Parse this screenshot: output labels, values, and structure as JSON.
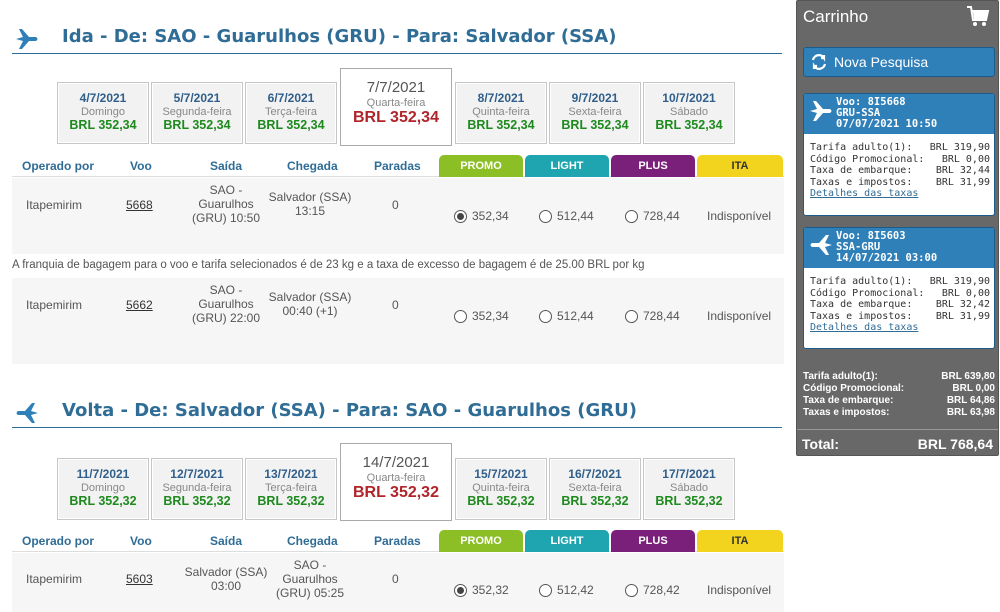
{
  "outbound": {
    "title": "Ida - De: SAO - Guarulhos (GRU) - Para: Salvador (SSA)",
    "dates": [
      {
        "date": "4/7/2021",
        "weekday": "Domingo",
        "price": "BRL 352,34"
      },
      {
        "date": "5/7/2021",
        "weekday": "Segunda-feira",
        "price": "BRL 352,34"
      },
      {
        "date": "6/7/2021",
        "weekday": "Terça-feira",
        "price": "BRL 352,34"
      },
      {
        "date": "7/7/2021",
        "weekday": "Quarta-feira",
        "price": "BRL 352,34"
      },
      {
        "date": "8/7/2021",
        "weekday": "Quinta-feira",
        "price": "BRL 352,34"
      },
      {
        "date": "9/7/2021",
        "weekday": "Sexta-feira",
        "price": "BRL 352,34"
      },
      {
        "date": "10/7/2021",
        "weekday": "Sábado",
        "price": "BRL 352,34"
      }
    ],
    "flights": [
      {
        "operator": "Itapemirim",
        "number": "5668",
        "dep1": "SAO -",
        "dep2": "Guarulhos",
        "dep3": "(GRU) 10:50",
        "arr1": "Salvador (SSA)",
        "arr2": "13:15",
        "arr3": "",
        "stops": "0",
        "promo": "352,34",
        "light": "512,44",
        "plus": "728,44",
        "ita": "Indisponível"
      },
      {
        "operator": "Itapemirim",
        "number": "5662",
        "dep1": "SAO -",
        "dep2": "Guarulhos",
        "dep3": "(GRU) 22:00",
        "arr1": "Salvador (SSA)",
        "arr2": "00:40 (+1)",
        "arr3": "",
        "stops": "0",
        "promo": "352,34",
        "light": "512,44",
        "plus": "728,44",
        "ita": "Indisponível"
      }
    ],
    "baggage_note": "A franquia de bagagem para o voo e tarifa selecionados é de 23 kg e a taxa de excesso de bagagem é de 25.00 BRL por kg"
  },
  "return": {
    "title": "Volta - De: Salvador (SSA) - Para: SAO - Guarulhos (GRU)",
    "dates": [
      {
        "date": "11/7/2021",
        "weekday": "Domingo",
        "price": "BRL 352,32"
      },
      {
        "date": "12/7/2021",
        "weekday": "Segunda-feira",
        "price": "BRL 352,32"
      },
      {
        "date": "13/7/2021",
        "weekday": "Terça-feira",
        "price": "BRL 352,32"
      },
      {
        "date": "14/7/2021",
        "weekday": "Quarta-feira",
        "price": "BRL 352,32"
      },
      {
        "date": "15/7/2021",
        "weekday": "Quinta-feira",
        "price": "BRL 352,32"
      },
      {
        "date": "16/7/2021",
        "weekday": "Sexta-feira",
        "price": "BRL 352,32"
      },
      {
        "date": "17/7/2021",
        "weekday": "Sábado",
        "price": "BRL 352,32"
      }
    ],
    "flights": [
      {
        "operator": "Itapemirim",
        "number": "5603",
        "dep1": "Salvador (SSA)",
        "dep2": "03:00",
        "dep3": "",
        "arr1": "SAO -",
        "arr2": "Guarulhos",
        "arr3": "(GRU) 05:25",
        "stops": "0",
        "promo": "352,32",
        "light": "512,42",
        "plus": "728,42",
        "ita": "Indisponível"
      }
    ]
  },
  "columns": {
    "operator": "Operado por",
    "flight": "Voo",
    "departure": "Saída",
    "arrival": "Chegada",
    "stops": "Paradas",
    "promo": "PROMO",
    "light": "LIGHT",
    "plus": "PLUS",
    "ita": "ITA"
  },
  "colors": {
    "promo": "#8cbf26",
    "light": "#1ea5b0",
    "plus": "#7a1f7a",
    "ita": "#f2d31e",
    "accent": "#2f6c96"
  },
  "cart": {
    "title": "Carrinho",
    "new_search": "Nova Pesquisa",
    "flights": [
      {
        "line1": "Voo: 8I5668",
        "line2": "GRU-SSA",
        "line3": "07/07/2021 10:50",
        "rows": [
          {
            "k": "Tarifa adulto(1):",
            "v": "BRL 319,90"
          },
          {
            "k": "Código Promocional:",
            "v": "BRL 0,00"
          },
          {
            "k": "Taxa de embarque:",
            "v": "BRL 32,44"
          },
          {
            "k": "Taxas e impostos:",
            "v": "BRL 31,99"
          }
        ],
        "link": "Detalhes das taxas"
      },
      {
        "line1": "Voo: 8I5603",
        "line2": "SSA-GRU",
        "line3": "14/07/2021 03:00",
        "rows": [
          {
            "k": "Tarifa adulto(1):",
            "v": "BRL 319,90"
          },
          {
            "k": "Código Promocional:",
            "v": "BRL 0,00"
          },
          {
            "k": "Taxa de embarque:",
            "v": "BRL 32,42"
          },
          {
            "k": "Taxas e impostos:",
            "v": "BRL 31,99"
          }
        ],
        "link": "Detalhes das taxas"
      }
    ],
    "summary": [
      {
        "k": "Tarifa adulto(1):",
        "v": "BRL 639,80"
      },
      {
        "k": "Código Promocional:",
        "v": "BRL 0,00"
      },
      {
        "k": "Taxa de embarque:",
        "v": "BRL 64,86"
      },
      {
        "k": "Taxas e impostos:",
        "v": "BRL 63,98"
      }
    ],
    "total_label": "Total:",
    "total_value": "BRL 768,64"
  }
}
